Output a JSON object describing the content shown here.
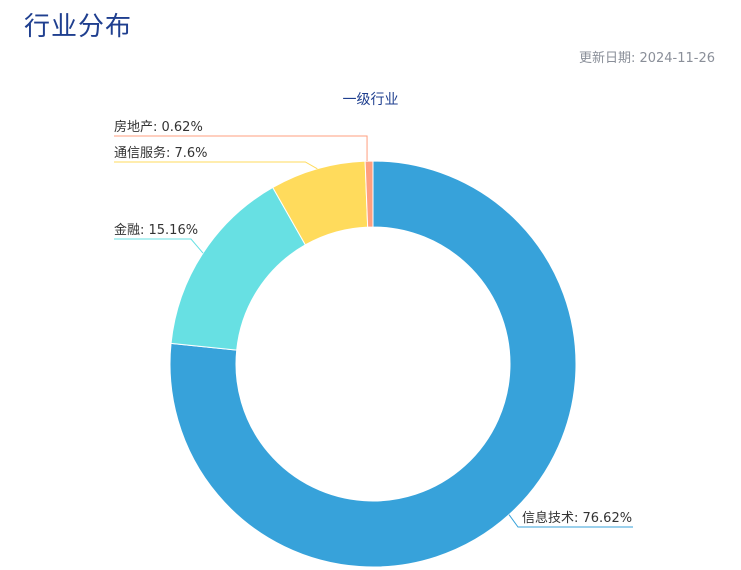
{
  "header": {
    "title": "行业分布",
    "update_date": "更新日期: 2024-11-26"
  },
  "chart_data": {
    "type": "pie",
    "title": "一级行业",
    "donut": true,
    "slices": [
      {
        "name": "信息技术",
        "value": 76.62,
        "label": "信息技术: 76.62%",
        "color": "#37a2da"
      },
      {
        "name": "金融",
        "value": 15.16,
        "label": "金融: 15.16%",
        "color": "#67e0e3"
      },
      {
        "name": "通信服务",
        "value": 7.6,
        "label": "通信服务: 7.6%",
        "color": "#ffdb5c"
      },
      {
        "name": "房地产",
        "value": 0.62,
        "label": "房地产: 0.62%",
        "color": "#ff9f7f"
      }
    ]
  }
}
